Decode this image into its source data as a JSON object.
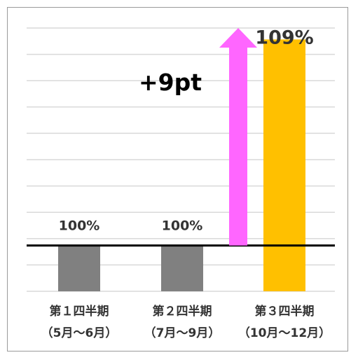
{
  "chart_data": {
    "type": "bar",
    "title": "",
    "xlabel": "",
    "ylabel": "",
    "categories": [
      {
        "line1": "第１四半期",
        "line2": "（5月～6月）"
      },
      {
        "line1": "第２四半期",
        "line2": "（7月～9月）"
      },
      {
        "line1": "第３四半期",
        "line2": "（10月～12月）"
      }
    ],
    "values": [
      100,
      100,
      109
    ],
    "data_labels": [
      "100%",
      "100%",
      "109%"
    ],
    "bar_colors": [
      "#808080",
      "#808080",
      "#FFC000"
    ],
    "ylim": [
      98,
      109.5
    ],
    "baseline": 100,
    "grid": true,
    "legend": "none",
    "annotation": {
      "text": "+9pt",
      "arrow_color": "#FF66FF",
      "from": 100,
      "to": 109.5
    }
  }
}
